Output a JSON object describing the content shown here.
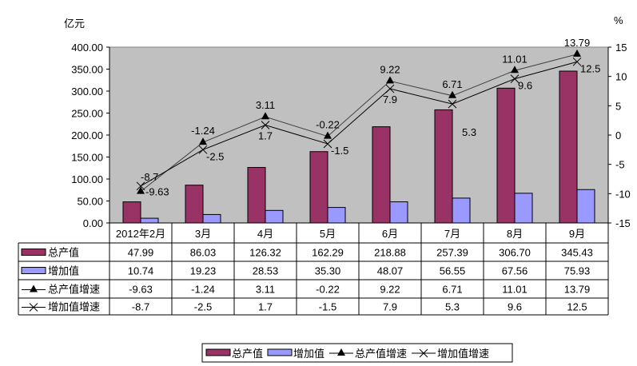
{
  "chart_data": {
    "type": "bar",
    "left_unit": "亿元",
    "right_unit": "%",
    "categories": [
      "2012年2月",
      "3月",
      "4月",
      "5月",
      "6月",
      "7月",
      "8月",
      "9月"
    ],
    "left_axis": {
      "range": [
        0,
        400
      ],
      "ticks": [
        "0.00",
        "50.00",
        "100.00",
        "150.00",
        "200.00",
        "250.00",
        "300.00",
        "350.00",
        "400.00"
      ]
    },
    "right_axis": {
      "range": [
        -15,
        15
      ],
      "ticks": [
        "-15",
        "-10",
        "-5",
        "0",
        "5",
        "10",
        "15"
      ]
    },
    "series": [
      {
        "name": "总产值",
        "kind": "bar",
        "axis": "left",
        "color": "#993366",
        "values": [
          47.99,
          86.03,
          126.32,
          162.29,
          218.88,
          257.39,
          306.7,
          345.43
        ],
        "labels": [
          "47.99",
          "86.03",
          "126.32",
          "162.29",
          "218.88",
          "257.39",
          "306.70",
          "345.43"
        ]
      },
      {
        "name": "增加值",
        "kind": "bar",
        "axis": "left",
        "color": "#9999FF",
        "values": [
          10.74,
          19.23,
          28.53,
          35.3,
          48.07,
          56.55,
          67.56,
          75.93
        ],
        "labels": [
          "10.74",
          "19.23",
          "28.53",
          "35.30",
          "48.07",
          "56.55",
          "67.56",
          "75.93"
        ]
      },
      {
        "name": "总产值增速",
        "kind": "line",
        "marker": "triangle",
        "axis": "right",
        "color": "#000000",
        "values": [
          -9.63,
          -1.24,
          3.11,
          -0.22,
          9.22,
          6.71,
          11.01,
          13.79
        ],
        "labels": [
          "-9.63",
          "-1.24",
          "3.11",
          "-0.22",
          "9.22",
          "6.71",
          "11.01",
          "13.79"
        ]
      },
      {
        "name": "增加值增速",
        "kind": "line",
        "marker": "x",
        "axis": "right",
        "color": "#000000",
        "values": [
          -8.7,
          -2.5,
          1.7,
          -1.5,
          7.9,
          5.3,
          9.6,
          12.5
        ],
        "labels": [
          "-8.7",
          "-2.5",
          "1.7",
          "-1.5",
          "7.9",
          "5.3",
          "9.6",
          "12.5"
        ]
      }
    ],
    "plot_background": "#C0C0C0",
    "data_table": true,
    "legend_position": "bottom"
  }
}
